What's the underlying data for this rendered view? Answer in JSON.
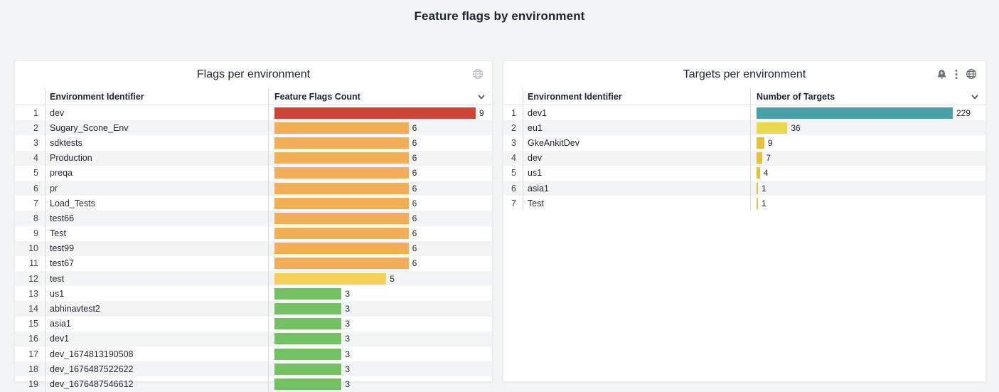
{
  "page": {
    "title": "Feature flags by environment",
    "background_color": "#f3f4f5"
  },
  "panels": [
    {
      "title": "Flags per environment",
      "icons": [
        "globe-icon"
      ],
      "columns": [
        "Environment Identifier",
        "Feature Flags Count"
      ],
      "max": 9,
      "rows": [
        {
          "index": 1,
          "name": "dev",
          "value": 9,
          "color": "#d04437"
        },
        {
          "index": 2,
          "name": "Sugary_Scone_Env",
          "value": 6,
          "color": "#f2ae54"
        },
        {
          "index": 3,
          "name": "sdktests",
          "value": 6,
          "color": "#f2ae54"
        },
        {
          "index": 4,
          "name": "Production",
          "value": 6,
          "color": "#f2ae54"
        },
        {
          "index": 5,
          "name": "preqa",
          "value": 6,
          "color": "#f2ae54"
        },
        {
          "index": 6,
          "name": "pr",
          "value": 6,
          "color": "#f2ae54"
        },
        {
          "index": 7,
          "name": "Load_Tests",
          "value": 6,
          "color": "#f2ae54"
        },
        {
          "index": 8,
          "name": "test66",
          "value": 6,
          "color": "#f2ae54"
        },
        {
          "index": 9,
          "name": "Test",
          "value": 6,
          "color": "#f2ae54"
        },
        {
          "index": 10,
          "name": "test99",
          "value": 6,
          "color": "#f2ae54"
        },
        {
          "index": 11,
          "name": "test67",
          "value": 6,
          "color": "#f2ae54"
        },
        {
          "index": 12,
          "name": "test",
          "value": 5,
          "color": "#f5d05c"
        },
        {
          "index": 13,
          "name": "us1",
          "value": 3,
          "color": "#73c163"
        },
        {
          "index": 14,
          "name": "abhinavtest2",
          "value": 3,
          "color": "#73c163"
        },
        {
          "index": 15,
          "name": "asia1",
          "value": 3,
          "color": "#73c163"
        },
        {
          "index": 16,
          "name": "dev1",
          "value": 3,
          "color": "#73c163"
        },
        {
          "index": 17,
          "name": "dev_1674813190508",
          "value": 3,
          "color": "#73c163"
        },
        {
          "index": 18,
          "name": "dev_1676487522622",
          "value": 3,
          "color": "#73c163"
        },
        {
          "index": 19,
          "name": "dev_1676487546612",
          "value": 3,
          "color": "#73c163"
        }
      ]
    },
    {
      "title": "Targets per environment",
      "icons": [
        "alert-bell-plus-icon",
        "kebab-menu-icon",
        "globe-icon"
      ],
      "columns": [
        "Environment Identifier",
        "Number of Targets"
      ],
      "max": 229,
      "rows": [
        {
          "index": 1,
          "name": "dev1",
          "value": 229,
          "color": "#4aa0a8"
        },
        {
          "index": 2,
          "name": "eu1",
          "value": 36,
          "color": "#ecd84e"
        },
        {
          "index": 3,
          "name": "GkeAnkitDev",
          "value": 9,
          "color": "#e6c23c"
        },
        {
          "index": 4,
          "name": "dev",
          "value": 7,
          "color": "#e6c23c"
        },
        {
          "index": 5,
          "name": "us1",
          "value": 4,
          "color": "#e6c23c"
        },
        {
          "index": 6,
          "name": "asia1",
          "value": 1,
          "color": "#e6c23c"
        },
        {
          "index": 7,
          "name": "Test",
          "value": 1,
          "color": "#e6c23c"
        }
      ]
    }
  ],
  "chart_data": [
    {
      "type": "bar",
      "orientation": "horizontal",
      "title": "Flags per environment",
      "categories": [
        "dev",
        "Sugary_Scone_Env",
        "sdktests",
        "Production",
        "preqa",
        "pr",
        "Load_Tests",
        "test66",
        "Test",
        "test99",
        "test67",
        "test",
        "us1",
        "abhinavtest2",
        "asia1",
        "dev1",
        "dev_1674813190508",
        "dev_1676487522622",
        "dev_1676487546612"
      ],
      "values": [
        9,
        6,
        6,
        6,
        6,
        6,
        6,
        6,
        6,
        6,
        6,
        5,
        3,
        3,
        3,
        3,
        3,
        3,
        3
      ],
      "xlabel": "Feature Flags Count",
      "ylabel": "Environment Identifier",
      "xlim": [
        0,
        9
      ],
      "legend": false,
      "grid": false
    },
    {
      "type": "bar",
      "orientation": "horizontal",
      "title": "Targets per environment",
      "categories": [
        "dev1",
        "eu1",
        "GkeAnkitDev",
        "dev",
        "us1",
        "asia1",
        "Test"
      ],
      "values": [
        229,
        36,
        9,
        7,
        4,
        1,
        1
      ],
      "xlabel": "Number of Targets",
      "ylabel": "Environment Identifier",
      "xlim": [
        0,
        229
      ],
      "legend": false,
      "grid": false
    }
  ]
}
